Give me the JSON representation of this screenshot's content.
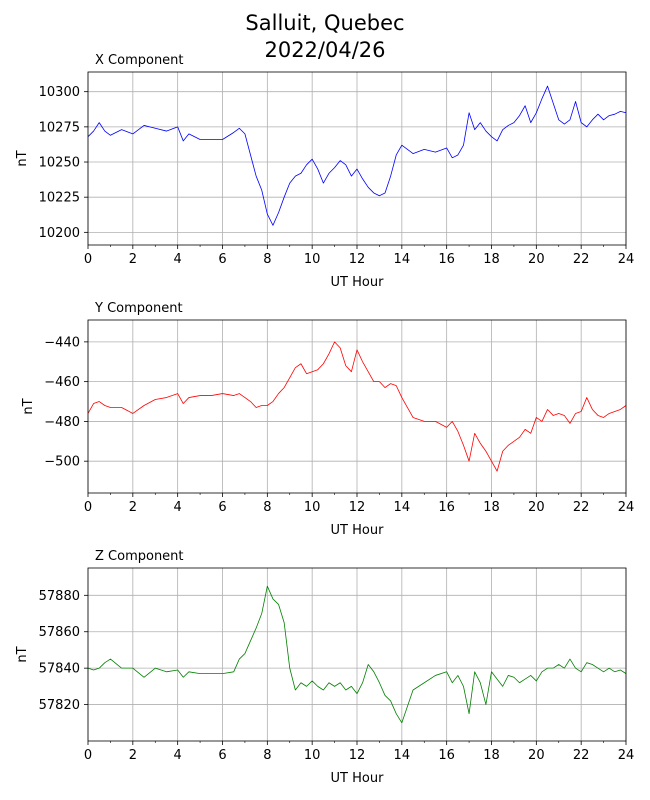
{
  "figure": {
    "title_line1": "Salluit, Quebec",
    "title_line2": "2022/04/26"
  },
  "chart_data": [
    {
      "type": "line",
      "title": "X Component",
      "xlabel": "UT Hour",
      "ylabel": "nT",
      "color": "#0000ff",
      "xlim": [
        0,
        24
      ],
      "ylim": [
        10191,
        10314
      ],
      "xticks": [
        0,
        2,
        4,
        6,
        8,
        10,
        12,
        14,
        16,
        18,
        20,
        22,
        24
      ],
      "yticks": [
        10200,
        10225,
        10250,
        10275,
        10300
      ],
      "grid": true,
      "series": [
        {
          "x": [
            0,
            0.25,
            0.5,
            0.75,
            1,
            1.5,
            2,
            2.5,
            3,
            3.5,
            4,
            4.25,
            4.5,
            5,
            5.5,
            6,
            6.5,
            6.75,
            7,
            7.25,
            7.5,
            7.75,
            8,
            8.25,
            8.5,
            8.75,
            9,
            9.25,
            9.5,
            9.75,
            10,
            10.25,
            10.5,
            10.75,
            11,
            11.25,
            11.5,
            11.75,
            12,
            12.25,
            12.5,
            12.75,
            13,
            13.25,
            13.5,
            13.75,
            14,
            14.5,
            15,
            15.5,
            16,
            16.25,
            16.5,
            16.75,
            17,
            17.25,
            17.5,
            17.75,
            18,
            18.25,
            18.5,
            18.75,
            19,
            19.25,
            19.5,
            19.75,
            20,
            20.25,
            20.5,
            20.75,
            21,
            21.25,
            21.5,
            21.75,
            22,
            22.25,
            22.5,
            22.75,
            23,
            23.25,
            23.5,
            23.75,
            24
          ],
          "y": [
            10268,
            10272,
            10278,
            10272,
            10269,
            10273,
            10270,
            10276,
            10274,
            10272,
            10275,
            10265,
            10270,
            10266,
            10266,
            10266,
            10271,
            10274,
            10270,
            10255,
            10240,
            10230,
            10213,
            10205,
            10214,
            10225,
            10235,
            10240,
            10242,
            10248,
            10252,
            10245,
            10235,
            10242,
            10246,
            10251,
            10248,
            10240,
            10245,
            10238,
            10232,
            10228,
            10226,
            10228,
            10240,
            10255,
            10262,
            10256,
            10259,
            10257,
            10260,
            10253,
            10255,
            10262,
            10285,
            10273,
            10278,
            10272,
            10268,
            10265,
            10273,
            10276,
            10278,
            10283,
            10290,
            10278,
            10285,
            10295,
            10304,
            10292,
            10280,
            10277,
            10280,
            10293,
            10278,
            10275,
            10280,
            10284,
            10280,
            10283,
            10284,
            10286,
            10285
          ]
        }
      ]
    },
    {
      "type": "line",
      "title": "Y Component",
      "xlabel": "UT Hour",
      "ylabel": "nT",
      "color": "#ff0000",
      "xlim": [
        0,
        24
      ],
      "ylim": [
        -516,
        -429
      ],
      "xticks": [
        0,
        2,
        4,
        6,
        8,
        10,
        12,
        14,
        16,
        18,
        20,
        22,
        24
      ],
      "yticks": [
        -440,
        -460,
        -480,
        -500
      ],
      "grid": true,
      "series": [
        {
          "x": [
            0,
            0.25,
            0.5,
            0.75,
            1,
            1.5,
            2,
            2.5,
            3,
            3.5,
            4,
            4.25,
            4.5,
            5,
            5.5,
            6,
            6.5,
            6.75,
            7,
            7.25,
            7.5,
            7.75,
            8,
            8.25,
            8.5,
            8.75,
            9,
            9.25,
            9.5,
            9.75,
            10,
            10.25,
            10.5,
            10.75,
            11,
            11.25,
            11.5,
            11.75,
            12,
            12.25,
            12.5,
            12.75,
            13,
            13.25,
            13.5,
            13.75,
            14,
            14.5,
            15,
            15.5,
            16,
            16.25,
            16.5,
            16.75,
            17,
            17.25,
            17.5,
            17.75,
            18,
            18.25,
            18.5,
            18.75,
            19,
            19.25,
            19.5,
            19.75,
            20,
            20.25,
            20.5,
            20.75,
            21,
            21.25,
            21.5,
            21.75,
            22,
            22.25,
            22.5,
            22.75,
            23,
            23.25,
            23.5,
            23.75,
            24
          ],
          "y": [
            -476,
            -471,
            -470,
            -472,
            -473,
            -473,
            -476,
            -472,
            -469,
            -468,
            -466,
            -471,
            -468,
            -467,
            -467,
            -466,
            -467,
            -466,
            -468,
            -470,
            -473,
            -472,
            -472,
            -470,
            -466,
            -463,
            -458,
            -453,
            -451,
            -456,
            -455,
            -454,
            -451,
            -446,
            -440,
            -443,
            -452,
            -455,
            -444,
            -450,
            -455,
            -460,
            -460,
            -463,
            -461,
            -462,
            -468,
            -478,
            -480,
            -480,
            -483,
            -480,
            -485,
            -492,
            -500,
            -486,
            -491,
            -495,
            -500,
            -505,
            -495,
            -492,
            -490,
            -488,
            -484,
            -486,
            -478,
            -480,
            -474,
            -477,
            -476,
            -477,
            -481,
            -476,
            -475,
            -468,
            -474,
            -477,
            -478,
            -476,
            -475,
            -474,
            -472
          ]
        }
      ]
    },
    {
      "type": "line",
      "title": "Z Component",
      "xlabel": "UT Hour",
      "ylabel": "nT",
      "color": "#008000",
      "xlim": [
        0,
        24
      ],
      "ylim": [
        57800,
        57895
      ],
      "xticks": [
        0,
        2,
        4,
        6,
        8,
        10,
        12,
        14,
        16,
        18,
        20,
        22,
        24
      ],
      "yticks": [
        57820,
        57840,
        57860,
        57880
      ],
      "grid": true,
      "series": [
        {
          "x": [
            0,
            0.25,
            0.5,
            0.75,
            1,
            1.5,
            2,
            2.5,
            3,
            3.5,
            4,
            4.25,
            4.5,
            5,
            5.5,
            6,
            6.5,
            6.75,
            7,
            7.25,
            7.5,
            7.75,
            8,
            8.25,
            8.5,
            8.75,
            9,
            9.25,
            9.5,
            9.75,
            10,
            10.25,
            10.5,
            10.75,
            11,
            11.25,
            11.5,
            11.75,
            12,
            12.25,
            12.5,
            12.75,
            13,
            13.25,
            13.5,
            13.75,
            14,
            14.5,
            15,
            15.5,
            16,
            16.25,
            16.5,
            16.75,
            17,
            17.25,
            17.5,
            17.75,
            18,
            18.25,
            18.5,
            18.75,
            19,
            19.25,
            19.5,
            19.75,
            20,
            20.25,
            20.5,
            20.75,
            21,
            21.25,
            21.5,
            21.75,
            22,
            22.25,
            22.5,
            22.75,
            23,
            23.25,
            23.5,
            23.75,
            24
          ],
          "y": [
            57840,
            57839,
            57840,
            57843,
            57845,
            57840,
            57840,
            57835,
            57840,
            57838,
            57839,
            57835,
            57838,
            57837,
            57837,
            57837,
            57838,
            57845,
            57848,
            57855,
            57862,
            57870,
            57885,
            57878,
            57875,
            57865,
            57840,
            57828,
            57832,
            57830,
            57833,
            57830,
            57828,
            57832,
            57830,
            57832,
            57828,
            57830,
            57826,
            57832,
            57842,
            57838,
            57832,
            57825,
            57822,
            57815,
            57810,
            57828,
            57832,
            57836,
            57838,
            57832,
            57836,
            57830,
            57815,
            57838,
            57832,
            57820,
            57838,
            57834,
            57830,
            57836,
            57835,
            57832,
            57834,
            57836,
            57833,
            57838,
            57840,
            57840,
            57842,
            57840,
            57845,
            57840,
            57838,
            57843,
            57842,
            57840,
            57838,
            57840,
            57838,
            57839,
            57837
          ]
        }
      ]
    }
  ]
}
